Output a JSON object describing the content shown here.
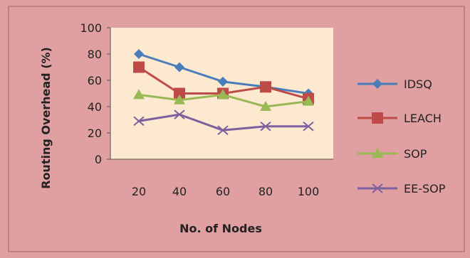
{
  "chart_data": {
    "type": "line",
    "title": "",
    "xlabel": "No. of Nodes",
    "ylabel": "Routing Overhead (%)",
    "categories": [
      "20",
      "40",
      "60",
      "80",
      "100"
    ],
    "ylim": [
      0,
      100
    ],
    "yticks": [
      "0",
      "20",
      "40",
      "60",
      "80",
      "100"
    ],
    "grid": false,
    "legend_position": "right",
    "colors": {
      "chart_background": "#e0a0a2",
      "plot_background": "#fde8d0",
      "border": "#a06060",
      "axis": "#555555"
    },
    "series": [
      {
        "name": "IDSQ",
        "values": [
          80,
          70,
          59,
          55,
          50
        ],
        "color": "#4a7ebb",
        "marker": "diamond"
      },
      {
        "name": "LEACH",
        "values": [
          70,
          50,
          50,
          55,
          46
        ],
        "color": "#be4b48",
        "marker": "square"
      },
      {
        "name": "SOP",
        "values": [
          49,
          45,
          49,
          40,
          44
        ],
        "color": "#98b954",
        "marker": "triangle"
      },
      {
        "name": "EE-SOP",
        "values": [
          29,
          34,
          22,
          25,
          25
        ],
        "color": "#7d60a0",
        "marker": "x"
      }
    ]
  }
}
